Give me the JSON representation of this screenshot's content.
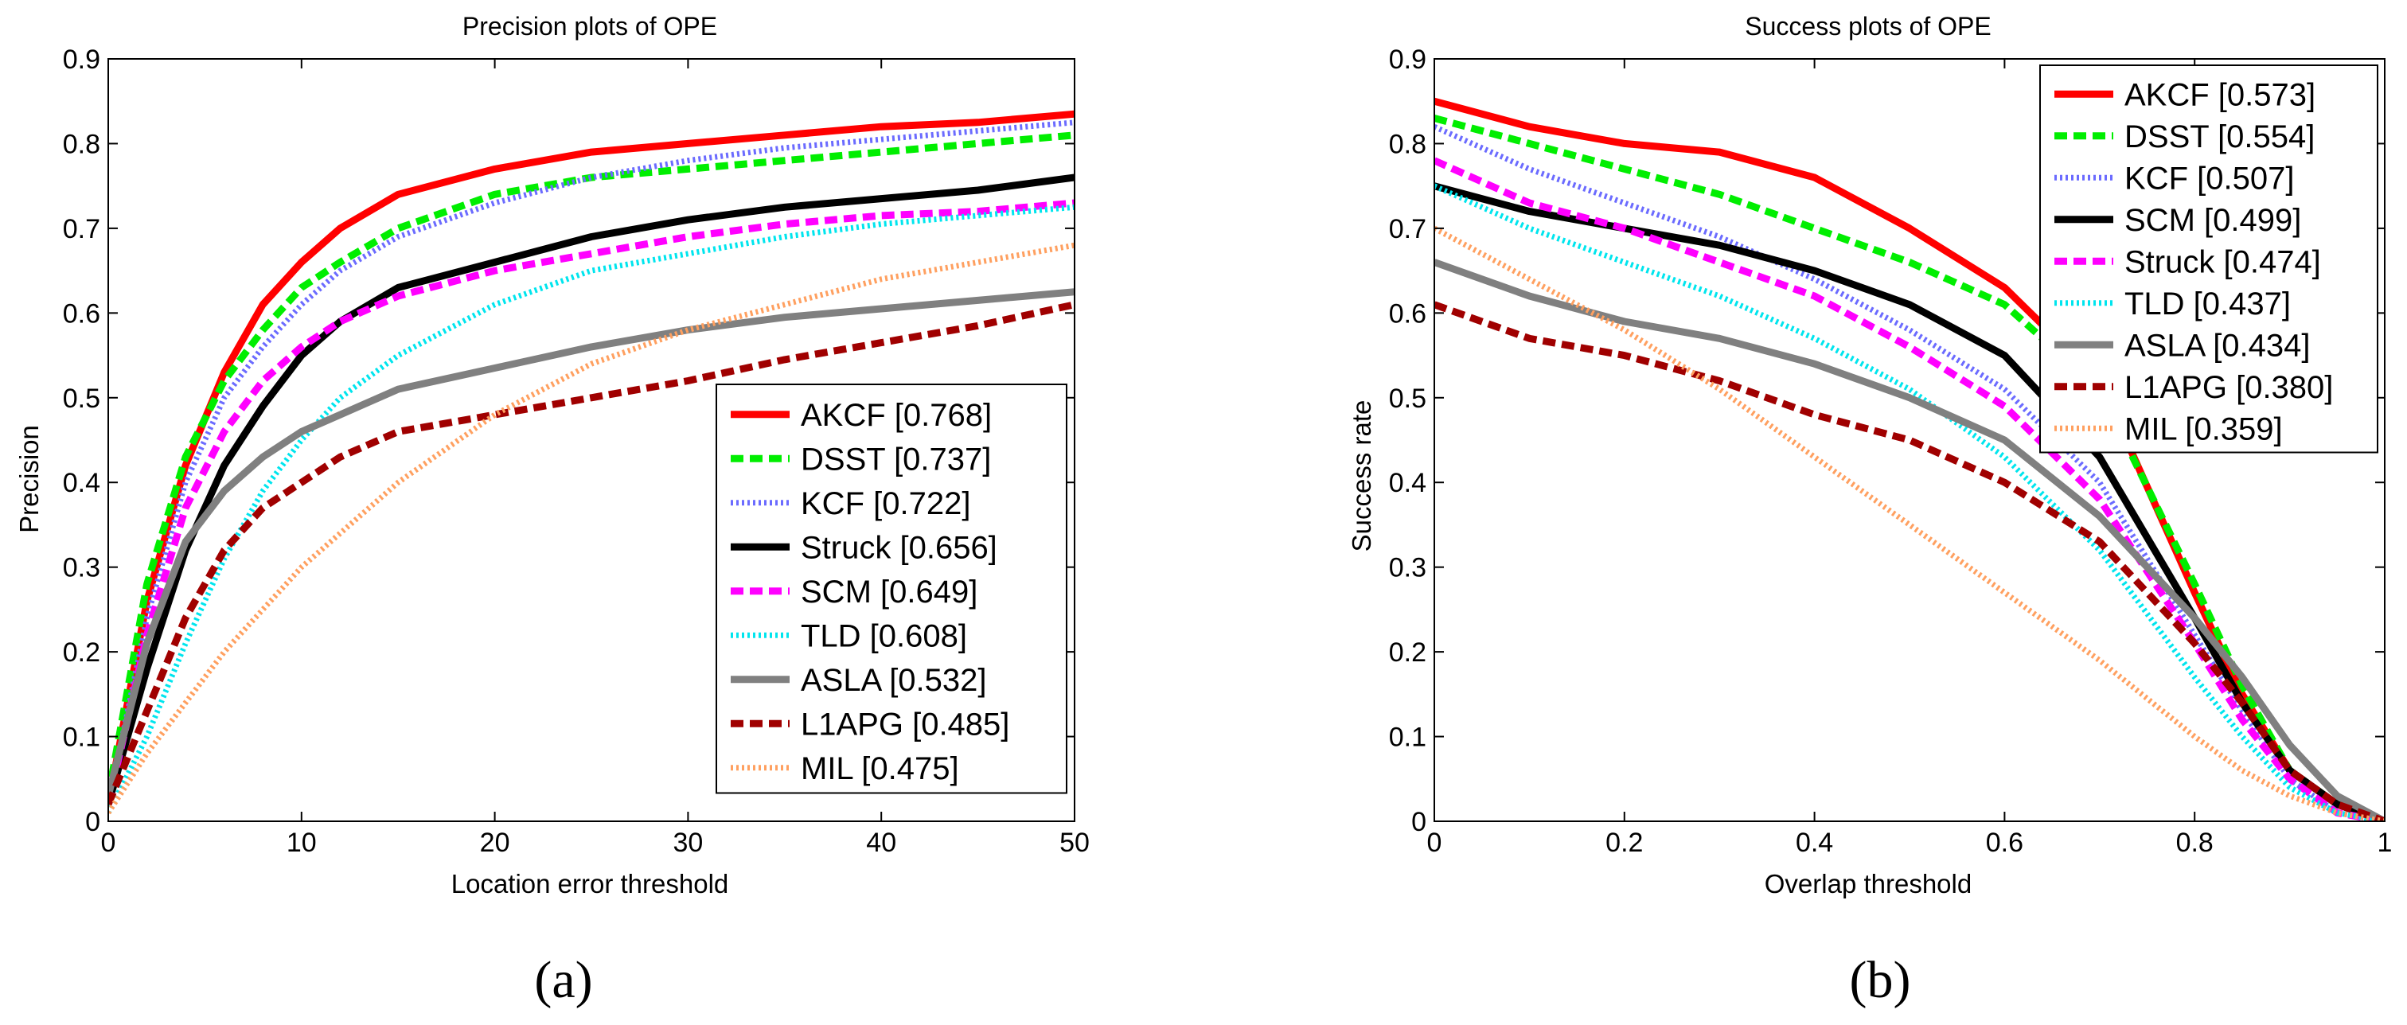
{
  "chart_data": [
    {
      "type": "line",
      "panel_label": "(a)",
      "title": "Precision plots of OPE",
      "xlabel": "Location error threshold",
      "ylabel": "Precision",
      "xlim": [
        0,
        50
      ],
      "ylim": [
        0,
        0.9
      ],
      "xticks": [
        0,
        10,
        20,
        30,
        40,
        50
      ],
      "yticks": [
        0,
        0.1,
        0.2,
        0.3,
        0.4,
        0.5,
        0.6,
        0.7,
        0.8,
        0.9
      ],
      "xtick_labels": [
        "0",
        "10",
        "20",
        "30",
        "40",
        "50"
      ],
      "ytick_labels": [
        "0",
        "0.1",
        "0.2",
        "0.3",
        "0.4",
        "0.5",
        "0.6",
        "0.7",
        "0.8",
        "0.9"
      ],
      "grid": false,
      "legend_position": "bottom-right",
      "series": [
        {
          "name": "AKCF [0.768]",
          "color": "#ff0000",
          "style": "solid",
          "x": [
            0,
            2,
            4,
            6,
            8,
            10,
            12,
            15,
            20,
            25,
            30,
            35,
            40,
            45,
            50
          ],
          "y": [
            0.02,
            0.26,
            0.42,
            0.53,
            0.61,
            0.66,
            0.7,
            0.74,
            0.77,
            0.79,
            0.8,
            0.81,
            0.82,
            0.825,
            0.835
          ]
        },
        {
          "name": "DSST [0.737]",
          "color": "#00ee00",
          "style": "dashed",
          "x": [
            0,
            2,
            4,
            6,
            8,
            10,
            12,
            15,
            20,
            25,
            30,
            35,
            40,
            45,
            50
          ],
          "y": [
            0.03,
            0.28,
            0.43,
            0.52,
            0.58,
            0.63,
            0.66,
            0.7,
            0.74,
            0.76,
            0.77,
            0.78,
            0.79,
            0.8,
            0.81
          ]
        },
        {
          "name": "KCF [0.722]",
          "color": "#6b6bff",
          "style": "dotted",
          "x": [
            0,
            2,
            4,
            6,
            8,
            10,
            12,
            15,
            20,
            25,
            30,
            35,
            40,
            45,
            50
          ],
          "y": [
            0.02,
            0.24,
            0.4,
            0.5,
            0.56,
            0.61,
            0.65,
            0.69,
            0.73,
            0.76,
            0.78,
            0.795,
            0.805,
            0.815,
            0.825
          ]
        },
        {
          "name": "Struck [0.656]",
          "color": "#000000",
          "style": "solid",
          "x": [
            0,
            2,
            4,
            6,
            8,
            10,
            12,
            15,
            20,
            25,
            30,
            35,
            40,
            45,
            50
          ],
          "y": [
            0.02,
            0.18,
            0.32,
            0.42,
            0.49,
            0.55,
            0.59,
            0.63,
            0.66,
            0.69,
            0.71,
            0.725,
            0.735,
            0.745,
            0.76
          ]
        },
        {
          "name": "SCM [0.649]",
          "color": "#ff00ff",
          "style": "dashed",
          "x": [
            0,
            2,
            4,
            6,
            8,
            10,
            12,
            15,
            20,
            25,
            30,
            35,
            40,
            45,
            50
          ],
          "y": [
            0.02,
            0.22,
            0.37,
            0.46,
            0.52,
            0.56,
            0.59,
            0.62,
            0.65,
            0.67,
            0.69,
            0.705,
            0.715,
            0.72,
            0.73
          ]
        },
        {
          "name": "TLD [0.608]",
          "color": "#00e5ee",
          "style": "dotted",
          "x": [
            0,
            2,
            4,
            6,
            8,
            10,
            12,
            15,
            20,
            25,
            30,
            35,
            40,
            45,
            50
          ],
          "y": [
            0.01,
            0.1,
            0.21,
            0.31,
            0.39,
            0.45,
            0.5,
            0.55,
            0.61,
            0.65,
            0.67,
            0.69,
            0.705,
            0.715,
            0.725
          ]
        },
        {
          "name": "ASLA [0.532]",
          "color": "#808080",
          "style": "solid",
          "x": [
            0,
            2,
            4,
            6,
            8,
            10,
            12,
            15,
            20,
            25,
            30,
            35,
            40,
            45,
            50
          ],
          "y": [
            0.03,
            0.21,
            0.33,
            0.39,
            0.43,
            0.46,
            0.48,
            0.51,
            0.535,
            0.56,
            0.58,
            0.595,
            0.605,
            0.615,
            0.625
          ]
        },
        {
          "name": "L1APG [0.485]",
          "color": "#a00000",
          "style": "dashed",
          "x": [
            0,
            2,
            4,
            6,
            8,
            10,
            12,
            15,
            20,
            25,
            30,
            35,
            40,
            45,
            50
          ],
          "y": [
            0.02,
            0.13,
            0.24,
            0.32,
            0.37,
            0.4,
            0.43,
            0.46,
            0.48,
            0.5,
            0.52,
            0.545,
            0.565,
            0.585,
            0.61
          ]
        },
        {
          "name": "MIL [0.475]",
          "color": "#ffa060",
          "style": "dotted",
          "x": [
            0,
            2,
            4,
            6,
            8,
            10,
            12,
            15,
            20,
            25,
            30,
            35,
            40,
            45,
            50
          ],
          "y": [
            0.01,
            0.08,
            0.14,
            0.2,
            0.25,
            0.3,
            0.34,
            0.4,
            0.48,
            0.54,
            0.58,
            0.61,
            0.64,
            0.66,
            0.68
          ]
        }
      ]
    },
    {
      "type": "line",
      "panel_label": "(b)",
      "title": "Success plots of OPE",
      "xlabel": "Overlap threshold",
      "ylabel": "Success rate",
      "xlim": [
        0,
        1
      ],
      "ylim": [
        0,
        0.9
      ],
      "xticks": [
        0,
        0.2,
        0.4,
        0.6,
        0.8,
        1
      ],
      "yticks": [
        0,
        0.1,
        0.2,
        0.3,
        0.4,
        0.5,
        0.6,
        0.7,
        0.8,
        0.9
      ],
      "xtick_labels": [
        "0",
        "0.2",
        "0.4",
        "0.6",
        "0.8",
        "1"
      ],
      "ytick_labels": [
        "0",
        "0.1",
        "0.2",
        "0.3",
        "0.4",
        "0.5",
        "0.6",
        "0.7",
        "0.8",
        "0.9"
      ],
      "grid": false,
      "legend_position": "top-right",
      "series": [
        {
          "name": "AKCF [0.573]",
          "color": "#ff0000",
          "style": "solid",
          "x": [
            0,
            0.1,
            0.2,
            0.3,
            0.4,
            0.5,
            0.6,
            0.7,
            0.8,
            0.85,
            0.9,
            0.95,
            1.0
          ],
          "y": [
            0.85,
            0.82,
            0.8,
            0.79,
            0.76,
            0.7,
            0.63,
            0.52,
            0.27,
            0.15,
            0.06,
            0.02,
            0.0
          ]
        },
        {
          "name": "DSST [0.554]",
          "color": "#00ee00",
          "style": "dashed",
          "x": [
            0,
            0.1,
            0.2,
            0.3,
            0.4,
            0.5,
            0.6,
            0.7,
            0.8,
            0.85,
            0.9,
            0.95,
            1.0
          ],
          "y": [
            0.83,
            0.8,
            0.77,
            0.74,
            0.7,
            0.66,
            0.61,
            0.51,
            0.28,
            0.16,
            0.06,
            0.02,
            0.0
          ]
        },
        {
          "name": "KCF [0.507]",
          "color": "#6b6bff",
          "style": "dotted",
          "x": [
            0,
            0.1,
            0.2,
            0.3,
            0.4,
            0.5,
            0.6,
            0.7,
            0.8,
            0.85,
            0.9,
            0.95,
            1.0
          ],
          "y": [
            0.82,
            0.77,
            0.73,
            0.69,
            0.64,
            0.58,
            0.51,
            0.4,
            0.22,
            0.13,
            0.05,
            0.01,
            0.0
          ]
        },
        {
          "name": "SCM [0.499]",
          "color": "#000000",
          "style": "solid",
          "x": [
            0,
            0.1,
            0.2,
            0.3,
            0.4,
            0.5,
            0.6,
            0.7,
            0.8,
            0.85,
            0.9,
            0.95,
            1.0
          ],
          "y": [
            0.75,
            0.72,
            0.7,
            0.68,
            0.65,
            0.61,
            0.55,
            0.43,
            0.24,
            0.14,
            0.06,
            0.02,
            0.0
          ]
        },
        {
          "name": "Struck [0.474]",
          "color": "#ff00ff",
          "style": "dashed",
          "x": [
            0,
            0.1,
            0.2,
            0.3,
            0.4,
            0.5,
            0.6,
            0.7,
            0.8,
            0.85,
            0.9,
            0.95,
            1.0
          ],
          "y": [
            0.78,
            0.73,
            0.7,
            0.66,
            0.62,
            0.56,
            0.49,
            0.38,
            0.21,
            0.12,
            0.05,
            0.01,
            0.0
          ]
        },
        {
          "name": "TLD [0.437]",
          "color": "#00e5ee",
          "style": "dotted",
          "x": [
            0,
            0.1,
            0.2,
            0.3,
            0.4,
            0.5,
            0.6,
            0.7,
            0.8,
            0.85,
            0.9,
            0.95,
            1.0
          ],
          "y": [
            0.75,
            0.7,
            0.66,
            0.62,
            0.57,
            0.51,
            0.43,
            0.32,
            0.17,
            0.1,
            0.04,
            0.01,
            0.0
          ]
        },
        {
          "name": "ASLA [0.434]",
          "color": "#808080",
          "style": "solid",
          "x": [
            0,
            0.1,
            0.2,
            0.3,
            0.4,
            0.5,
            0.6,
            0.7,
            0.8,
            0.85,
            0.9,
            0.95,
            1.0
          ],
          "y": [
            0.66,
            0.62,
            0.59,
            0.57,
            0.54,
            0.5,
            0.45,
            0.36,
            0.24,
            0.17,
            0.09,
            0.03,
            0.0
          ]
        },
        {
          "name": "L1APG [0.380]",
          "color": "#a00000",
          "style": "dashed",
          "x": [
            0,
            0.1,
            0.2,
            0.3,
            0.4,
            0.5,
            0.6,
            0.7,
            0.8,
            0.85,
            0.9,
            0.95,
            1.0
          ],
          "y": [
            0.61,
            0.57,
            0.55,
            0.52,
            0.48,
            0.45,
            0.4,
            0.33,
            0.21,
            0.14,
            0.06,
            0.02,
            0.0
          ]
        },
        {
          "name": "MIL [0.359]",
          "color": "#ffa060",
          "style": "dotted",
          "x": [
            0,
            0.1,
            0.2,
            0.3,
            0.4,
            0.5,
            0.6,
            0.7,
            0.8,
            0.85,
            0.9,
            0.95,
            1.0
          ],
          "y": [
            0.7,
            0.64,
            0.58,
            0.51,
            0.43,
            0.35,
            0.27,
            0.19,
            0.1,
            0.06,
            0.03,
            0.01,
            0.0
          ]
        }
      ]
    }
  ]
}
